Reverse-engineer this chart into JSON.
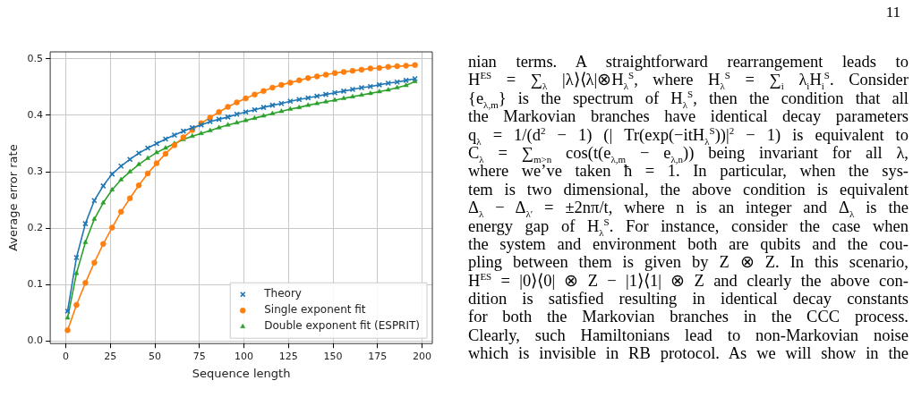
{
  "chart_data": {
    "type": "line",
    "xlabel": "Sequence length",
    "ylabel": "Average error rate",
    "x": [
      1,
      6,
      11,
      16,
      21,
      26,
      31,
      36,
      41,
      46,
      51,
      56,
      61,
      66,
      71,
      76,
      81,
      86,
      91,
      96,
      101,
      106,
      111,
      116,
      121,
      126,
      131,
      136,
      141,
      146,
      151,
      156,
      161,
      166,
      171,
      176,
      181,
      186,
      191,
      196
    ],
    "series": [
      {
        "name": "Theory",
        "color": "#1f77b4",
        "marker": "cross",
        "values": [
          0.053,
          0.148,
          0.208,
          0.249,
          0.275,
          0.296,
          0.31,
          0.322,
          0.333,
          0.342,
          0.35,
          0.358,
          0.365,
          0.372,
          0.378,
          0.383,
          0.389,
          0.393,
          0.397,
          0.402,
          0.406,
          0.41,
          0.414,
          0.418,
          0.421,
          0.425,
          0.428,
          0.431,
          0.434,
          0.437,
          0.44,
          0.443,
          0.446,
          0.449,
          0.451,
          0.454,
          0.457,
          0.459,
          0.462,
          0.465
        ]
      },
      {
        "name": "Single exponent fit",
        "color": "#ff7f0e",
        "marker": "circle",
        "values": [
          0.019,
          0.064,
          0.103,
          0.139,
          0.172,
          0.201,
          0.229,
          0.253,
          0.276,
          0.297,
          0.315,
          0.332,
          0.347,
          0.361,
          0.374,
          0.386,
          0.396,
          0.406,
          0.415,
          0.423,
          0.43,
          0.437,
          0.443,
          0.449,
          0.454,
          0.458,
          0.462,
          0.466,
          0.469,
          0.472,
          0.475,
          0.477,
          0.479,
          0.481,
          0.483,
          0.484,
          0.486,
          0.487,
          0.488,
          0.489
        ]
      },
      {
        "name": "Double exponent fit (ESPRIT)",
        "color": "#2ca02c",
        "marker": "triangle",
        "values": [
          0.041,
          0.12,
          0.175,
          0.216,
          0.245,
          0.268,
          0.286,
          0.3,
          0.313,
          0.324,
          0.334,
          0.342,
          0.35,
          0.357,
          0.363,
          0.368,
          0.373,
          0.378,
          0.383,
          0.387,
          0.391,
          0.395,
          0.399,
          0.403,
          0.407,
          0.411,
          0.414,
          0.418,
          0.421,
          0.424,
          0.427,
          0.43,
          0.433,
          0.436,
          0.439,
          0.442,
          0.445,
          0.449,
          0.453,
          0.46
        ]
      }
    ],
    "xlim": [
      -8.75,
      205.75
    ],
    "xticks": [
      0,
      25,
      50,
      75,
      100,
      125,
      150,
      175,
      200
    ],
    "ylim": [
      -0.0045,
      0.5125
    ],
    "yticks": [
      {
        "value": 0,
        "label": "0.0"
      },
      0.1,
      0.2,
      0.3,
      0.4,
      0.5
    ],
    "grid": true,
    "legend": "bottom right",
    "line_style": "solid",
    "annotations": [
      "11",
      "nian terms. A straightforward rearrangement leads to",
      "H$^{ES}$ = ∑$_{λ}$ |λ⟩⟨λ|⊗H$_{λ}$$^{S}$, where H$_{λ}$$^{S}$ = ∑$_{i}$ λ$_{i}$H$_{i}$$^{S}$. Consider",
      "{e$_{λ,m}$} is the spectrum of H$_{λ}$$^{S}$, then the condition that all",
      "the Markovian branches have identical decay parameters",
      "q$_{λ}$ = 1/(d$^{2}$ − 1) (| Tr(exp(−itH$_{λ}$$^{S}$))|$^{2}$ − 1) is equivalent to",
      "C$_{λ}$ = ∑$_{m>n}$ cos(t(e$_{λ,m}$ − e$_{λ,n}$)) being invariant for all λ,",
      "where we’ve taken ħ = 1. In particular, when the sys-",
      "tem is two dimensional, the above condition is equivalent",
      "Δ$_{λ}$ − Δ$_{λ′}$ = ±2nπ/t, where n is an integer and Δ$_{λ}$ is the",
      "energy gap of H$_{λ}$$^{S}$. For instance, consider the case when",
      "the system and environment both are qubits and the cou-",
      "pling between them is given by Z ⊗ Z. In this scenario,",
      "H$^{ES}$ = |0⟩⟨0| ⊗ Z − |1⟩⟨1| ⊗ Z and clearly the above con-",
      "dition is satisfied resulting in identical decay constants",
      "for both the Markovian branches in the CCC process.",
      "Clearly, such Hamiltonians lead to non-Markovian noise",
      "which is invisible in RB protocol. As we will show in the"
    ]
  }
}
